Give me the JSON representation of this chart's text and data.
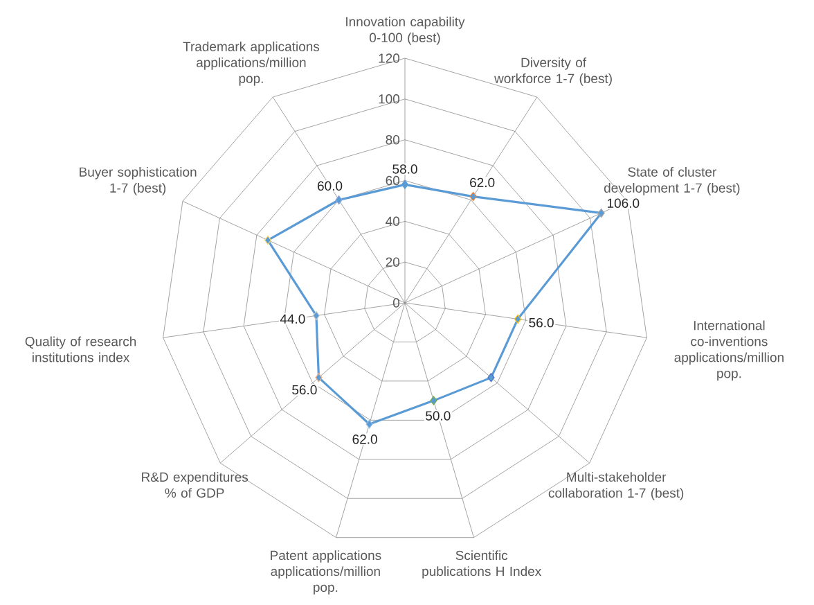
{
  "chart_data": {
    "type": "radar",
    "categories": [
      "Innovation capability 0-100 (best)",
      "Diversity of workforce 1-7 (best)",
      "State of cluster development 1-7 (best)",
      "International co-inventions applications/million pop.",
      "Multi-stakeholder collaboration 1-7 (best)",
      "Scientific publications H Index",
      "Patent applications applications/million pop.",
      "R&D expenditures % of GDP",
      "Quality of research institutions index",
      "Buyer sophistication 1-7 (best)",
      "Trademark applications applications/million pop."
    ],
    "series": [
      {
        "color": "#5b9bd5",
        "values": [
          58,
          62,
          106,
          56,
          56,
          50,
          62,
          56,
          44,
          74,
          60
        ],
        "colors": [
          "#5b9bd5",
          "#ed7d31",
          "#a5a5a5",
          "#ffc000",
          "#4472c4",
          "#70ad47",
          "#9dc3e6",
          "#f4b183",
          "#c9c9c9",
          "#ffd966",
          "#8faadc"
        ],
        "value_labels": [
          "58.0",
          "62.0",
          "106.0",
          "56.0",
          null,
          "50.0",
          "62.0",
          "56.0",
          "44.0",
          null,
          "60.0"
        ]
      }
    ],
    "ylim": [
      0,
      120
    ],
    "yticks": [
      0,
      20,
      40,
      60,
      80,
      100,
      120
    ],
    "grid": true,
    "marker": "diamond"
  }
}
